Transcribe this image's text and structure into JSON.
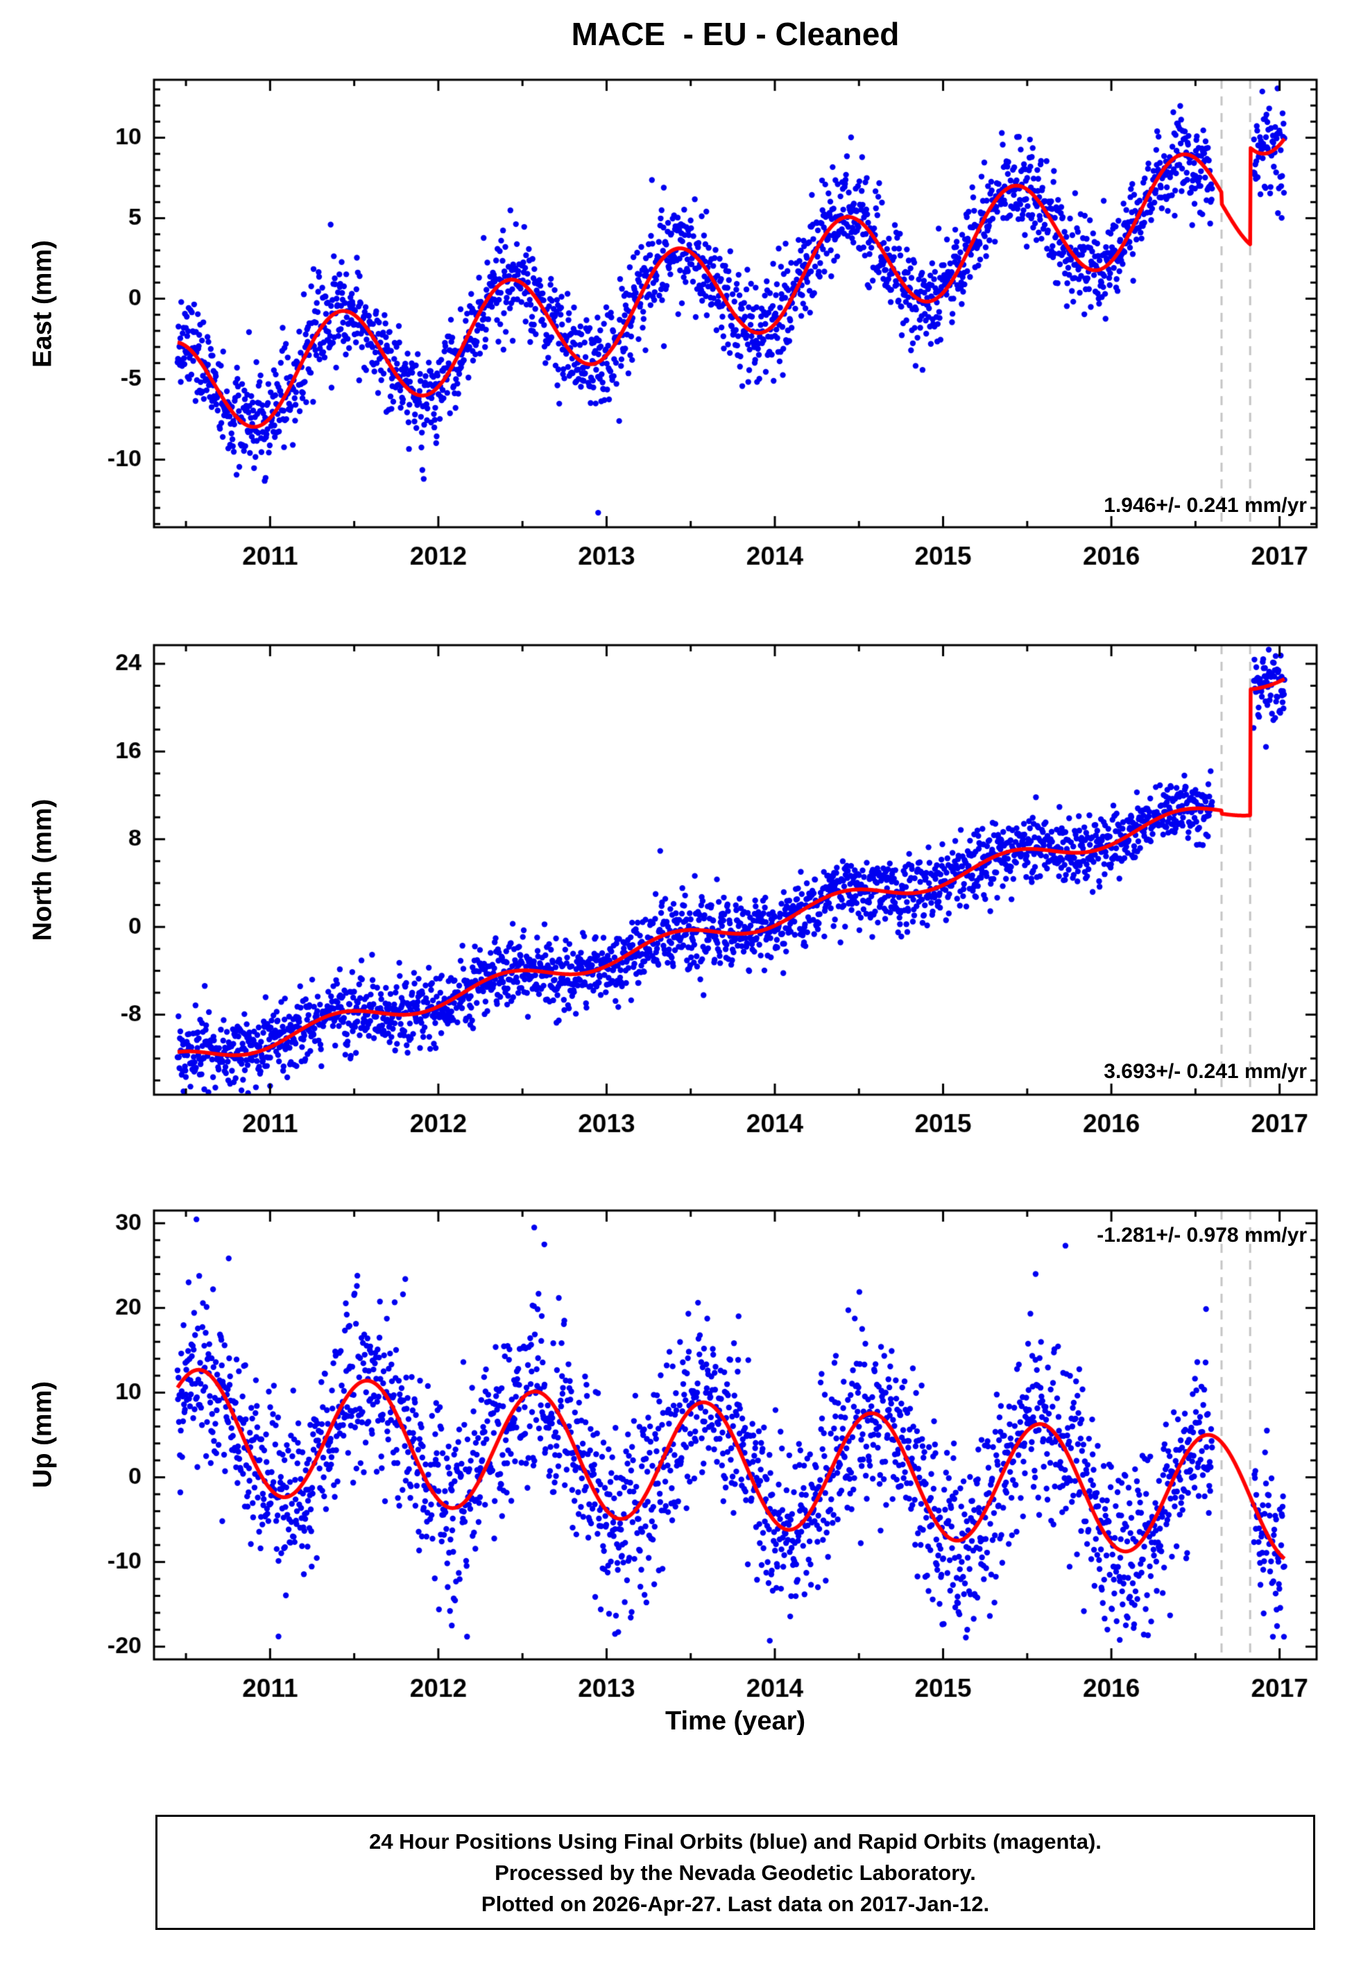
{
  "chart_data": {
    "type": "scatter",
    "title": "MACE  - EU - Cleaned",
    "xlabel": "Time (year)",
    "station": "MACE",
    "reference_frame": "EU",
    "processing": "Cleaned",
    "x_axis": {
      "min": 2010.31,
      "max": 2017.22,
      "data_start": 2010.45,
      "data_end": 2017.03,
      "major_tick": 1,
      "minor_tick": 0.5,
      "year_values": [
        2011,
        2012,
        2013,
        2014,
        2015,
        2016,
        2017
      ],
      "year_labels": [
        "2011",
        "2012",
        "2013",
        "2014",
        "2015",
        "2016",
        "2017"
      ]
    },
    "data_gap": {
      "start": 2016.6,
      "end": 2016.845
    },
    "dashed_marker_lines_x": [
      2016.655,
      2016.825
    ],
    "sample_step_years": 0.00274,
    "seed": 20170112,
    "colors": {
      "points": "#0000f0",
      "model_line": "#ff0000",
      "dashed_line": "#c4c4c4",
      "axis": "#000000",
      "rapid_orbits": "#ff00ff"
    },
    "panels": [
      {
        "id": "east",
        "ylabel": "East (mm)",
        "rate_text": "1.946+/- 0.241 mm/yr",
        "rate_position": "bottom-right",
        "ymin": -14.2,
        "ymax": 13.6,
        "tick_labels": [
          -10,
          -5,
          0,
          5,
          10
        ],
        "minor_tick": 1,
        "noise_sd": 1.55,
        "model": {
          "base": -4.5,
          "t_base": 2011.1,
          "rate": 1.946,
          "annual_amp": 3.1,
          "annual_phase": 0.42,
          "steps": [
            {
              "t": 2016.655,
              "dv": -0.7
            },
            {
              "t": 2016.825,
              "dv": 6.0
            }
          ]
        },
        "outliers": [
          [
            2012.95,
            -13.3
          ],
          [
            2013.34,
            6.9
          ],
          [
            2011.36,
            4.6
          ]
        ]
      },
      {
        "id": "north",
        "ylabel": "North (mm)",
        "rate_text": "3.693+/- 0.241 mm/yr",
        "rate_position": "bottom-right",
        "ymin": -15.3,
        "ymax": 25.7,
        "tick_labels": [
          -8,
          0,
          8,
          16,
          24
        ],
        "minor_tick": 2,
        "noise_sd": 1.55,
        "model": {
          "base": -1.0,
          "t_base": 2013.5,
          "rate": 3.693,
          "annual_amp": 0.9,
          "annual_phase": 0.4,
          "steps": [
            {
              "t": 2016.655,
              "dv": -0.3
            },
            {
              "t": 2016.825,
              "dv": 11.5
            }
          ]
        },
        "outliers": [
          [
            2010.83,
            -14.9
          ],
          [
            2011.0,
            -14.5
          ]
        ]
      },
      {
        "id": "up",
        "ylabel": "Up (mm)",
        "rate_text": "-1.281+/- 0.978 mm/yr",
        "rate_position": "top-right",
        "ymin": -21.5,
        "ymax": 31.5,
        "tick_labels": [
          -20,
          -10,
          0,
          10,
          20,
          30
        ],
        "minor_tick": 2,
        "noise_sd": 5.2,
        "model": {
          "base": 1.75,
          "t_base": 2013.5,
          "rate": -1.281,
          "annual_amp": 7.2,
          "annual_phase": 0.58,
          "steps": []
        },
        "outliers": [
          [
            2012.57,
            29.5
          ],
          [
            2012.63,
            27.5
          ],
          [
            2015.55,
            24.0
          ],
          [
            2013.97,
            -19.3
          ],
          [
            2011.05,
            -18.8
          ],
          [
            2016.05,
            -19.2
          ],
          [
            2012.08,
            -17.5
          ],
          [
            2013.05,
            -18.5
          ]
        ]
      }
    ]
  },
  "footer": {
    "lines": [
      "24 Hour Positions Using Final Orbits (blue) and Rapid Orbits (magenta).",
      "Processed by the Nevada Geodetic Laboratory.",
      "Plotted on 2026-Apr-27. Last data on 2017-Jan-12."
    ]
  }
}
